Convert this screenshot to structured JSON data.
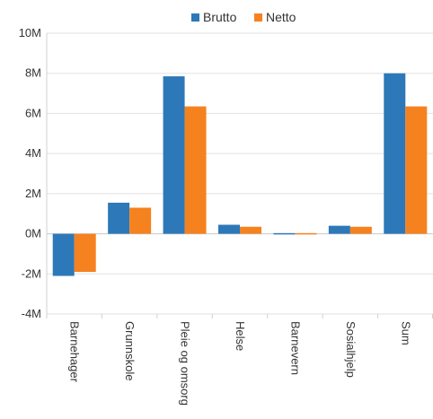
{
  "chart_data": {
    "type": "bar",
    "categories": [
      "Barnehager",
      "Grunnskole",
      "Pleie og omsorg",
      "Helse",
      "Barnevern",
      "Sosialhjelp",
      "Sum"
    ],
    "series": [
      {
        "name": "Brutto",
        "color": "#2d78b8",
        "values": [
          -2.1,
          1.55,
          7.85,
          0.45,
          -0.05,
          0.4,
          8.0
        ]
      },
      {
        "name": "Netto",
        "color": "#f5821f",
        "values": [
          -1.9,
          1.3,
          6.35,
          0.35,
          -0.03,
          0.35,
          6.35
        ]
      }
    ],
    "ylim": [
      -4,
      10
    ],
    "y_ticks": [
      -4,
      -2,
      0,
      2,
      4,
      6,
      8,
      10
    ],
    "y_tick_labels": [
      "-4M",
      "-2M",
      "0M",
      "2M",
      "4M",
      "6M",
      "8M",
      "10M"
    ],
    "legend_position": "top-center",
    "grid": true
  }
}
